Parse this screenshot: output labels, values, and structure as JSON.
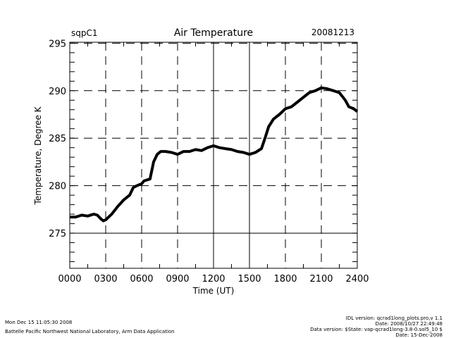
{
  "chart_data": {
    "type": "line",
    "title": "Air Temperature",
    "site": "sqpC1",
    "date": "20081213",
    "xlabel": "Time (UT)",
    "ylabel": "Temperature, Degree K",
    "xlim": [
      0,
      2400
    ],
    "ylim": [
      271.3,
      295.1
    ],
    "x_ticks": [
      "0000",
      "0300",
      "0600",
      "0900",
      "1200",
      "1500",
      "1800",
      "2100",
      "2400"
    ],
    "y_ticks": [
      "275",
      "280",
      "285",
      "290",
      "295"
    ],
    "grid": true,
    "series": [
      {
        "name": "Air Temperature",
        "color": "#000000",
        "x": [
          0,
          50,
          100,
          150,
          200,
          230,
          260,
          280,
          300,
          350,
          400,
          450,
          500,
          530,
          560,
          600,
          620,
          670,
          700,
          730,
          760,
          800,
          850,
          900,
          950,
          1000,
          1050,
          1100,
          1150,
          1200,
          1250,
          1300,
          1350,
          1400,
          1450,
          1500,
          1550,
          1600,
          1630,
          1660,
          1700,
          1750,
          1800,
          1850,
          1900,
          1950,
          2000,
          2050,
          2100,
          2150,
          2200,
          2250,
          2300,
          2330,
          2370,
          2400
        ],
        "values": [
          276.7,
          276.7,
          276.9,
          276.8,
          277.0,
          276.9,
          276.5,
          276.3,
          276.4,
          277.0,
          277.8,
          278.5,
          279.0,
          279.8,
          280.0,
          280.2,
          280.5,
          280.7,
          282.5,
          283.3,
          283.6,
          283.6,
          283.5,
          283.3,
          283.6,
          283.6,
          283.8,
          283.7,
          284.0,
          284.2,
          284.0,
          283.9,
          283.8,
          283.6,
          283.5,
          283.3,
          283.5,
          283.9,
          285.0,
          286.2,
          287.0,
          287.5,
          288.1,
          288.3,
          288.8,
          289.3,
          289.8,
          290.0,
          290.3,
          290.2,
          290.0,
          289.8,
          289.0,
          288.3,
          288.1,
          287.8
        ]
      }
    ]
  },
  "footer": {
    "timestamp": "Mon Dec 15 11:05:30 2008",
    "organization": "Battelle Pacific Northwest National Laboratory, Arm Data Application",
    "idl_version": "IDL version: qcrad1long_plots.pro,v 1.1",
    "idl_date": "Date: 2008/10/27 22:49:48",
    "data_version": "Data version: $State: vap-qcrad1long-3.8-0.sol5_10 $",
    "data_date": "Date: 15-Dec-2008"
  }
}
